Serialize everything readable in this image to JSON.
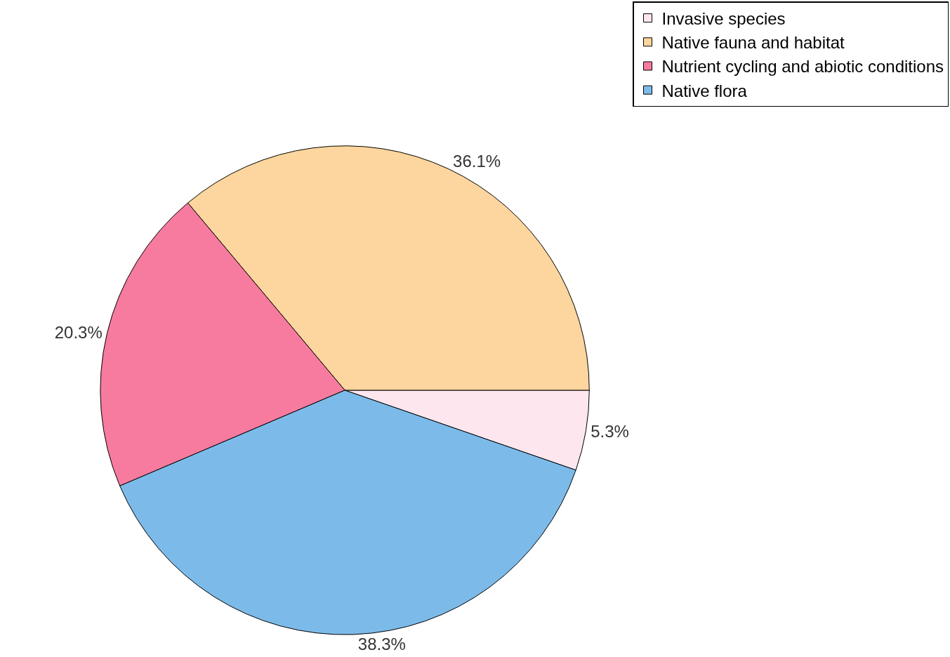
{
  "chart_data": {
    "type": "pie",
    "categories": [
      "Invasive species",
      "Native fauna and habitat",
      "Nutrient cycling and abiotic conditions",
      "Native flora"
    ],
    "values": [
      5.3,
      36.1,
      20.3,
      38.3
    ],
    "value_labels": [
      "5.3%",
      "36.1%",
      "20.3%",
      "38.3%"
    ],
    "colors": [
      "#fde6ee",
      "#fdd59e",
      "#f77b9f",
      "#7cbbe9"
    ],
    "legend": "top right"
  }
}
